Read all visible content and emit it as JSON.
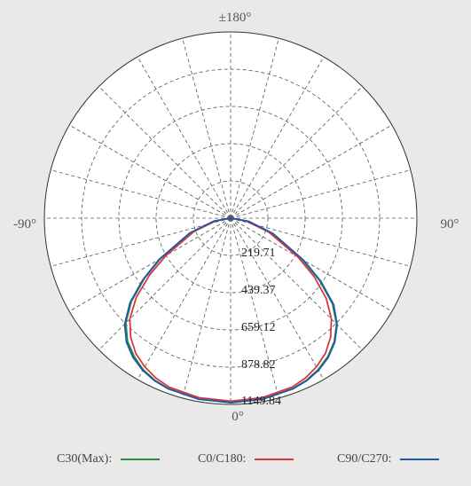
{
  "chart_data": {
    "type": "polar-line",
    "angle_labels": {
      "top": "±180°",
      "left": "-90°",
      "right": "90°",
      "bottom": "0°"
    },
    "radial_labels": [
      "219.71",
      "439.37",
      "659.12",
      "878.82",
      "1149.84"
    ],
    "rmax": 1149.84,
    "angle_range": [
      -90,
      90
    ],
    "grid": true,
    "series": [
      {
        "name": "C30(Max):",
        "color": "#2e8b3e",
        "points": [
          [
            -90,
            0
          ],
          [
            -80,
            100
          ],
          [
            -70,
            260
          ],
          [
            -60,
            500
          ],
          [
            -55,
            650
          ],
          [
            -50,
            800
          ],
          [
            -45,
            915
          ],
          [
            -40,
            990
          ],
          [
            -35,
            1040
          ],
          [
            -30,
            1080
          ],
          [
            -25,
            1105
          ],
          [
            -20,
            1120
          ],
          [
            -10,
            1135
          ],
          [
            0,
            1140
          ],
          [
            10,
            1135
          ],
          [
            20,
            1120
          ],
          [
            25,
            1105
          ],
          [
            30,
            1080
          ],
          [
            35,
            1045
          ],
          [
            40,
            995
          ],
          [
            45,
            925
          ],
          [
            50,
            820
          ],
          [
            55,
            670
          ],
          [
            60,
            510
          ],
          [
            70,
            270
          ],
          [
            80,
            110
          ],
          [
            90,
            0
          ]
        ]
      },
      {
        "name": "C0/C180:",
        "color": "#d9383a",
        "points": [
          [
            -90,
            0
          ],
          [
            -80,
            90
          ],
          [
            -70,
            240
          ],
          [
            -60,
            460
          ],
          [
            -55,
            610
          ],
          [
            -50,
            760
          ],
          [
            -45,
            880
          ],
          [
            -40,
            960
          ],
          [
            -35,
            1020
          ],
          [
            -30,
            1060
          ],
          [
            -25,
            1090
          ],
          [
            -20,
            1110
          ],
          [
            -10,
            1125
          ],
          [
            0,
            1130
          ],
          [
            10,
            1125
          ],
          [
            20,
            1110
          ],
          [
            25,
            1090
          ],
          [
            30,
            1060
          ],
          [
            35,
            1020
          ],
          [
            40,
            960
          ],
          [
            45,
            880
          ],
          [
            50,
            770
          ],
          [
            55,
            630
          ],
          [
            60,
            480
          ],
          [
            70,
            250
          ],
          [
            80,
            95
          ],
          [
            90,
            0
          ]
        ]
      },
      {
        "name": "C90/C270:",
        "color": "#2156a8",
        "points": [
          [
            -90,
            0
          ],
          [
            -80,
            105
          ],
          [
            -70,
            270
          ],
          [
            -60,
            510
          ],
          [
            -55,
            660
          ],
          [
            -50,
            810
          ],
          [
            -45,
            925
          ],
          [
            -40,
            1000
          ],
          [
            -35,
            1050
          ],
          [
            -30,
            1085
          ],
          [
            -25,
            1108
          ],
          [
            -20,
            1122
          ],
          [
            -10,
            1135
          ],
          [
            0,
            1138
          ],
          [
            10,
            1135
          ],
          [
            20,
            1122
          ],
          [
            25,
            1108
          ],
          [
            30,
            1085
          ],
          [
            35,
            1050
          ],
          [
            40,
            1000
          ],
          [
            45,
            930
          ],
          [
            50,
            830
          ],
          [
            55,
            680
          ],
          [
            60,
            520
          ],
          [
            70,
            280
          ],
          [
            80,
            115
          ],
          [
            90,
            0
          ]
        ]
      }
    ]
  }
}
